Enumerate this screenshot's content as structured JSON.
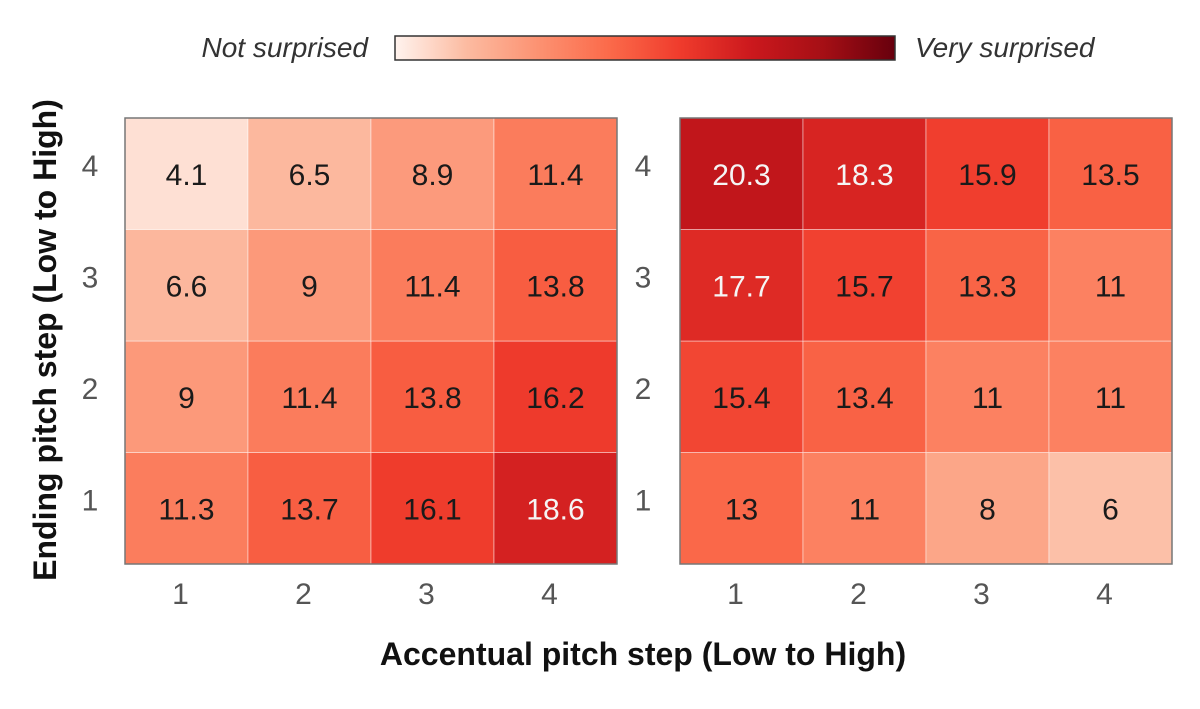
{
  "legend": {
    "low_label": "Not surprised",
    "high_label": "Very surprised",
    "color_low": "#fff3ee",
    "color_high": "#67000d"
  },
  "xlabel": "Accentual pitch step (Low to High)",
  "ylabel": "Ending pitch step (Low to High)",
  "chart_data": [
    {
      "type": "heatmap",
      "x": [
        "1",
        "2",
        "3",
        "4"
      ],
      "y": [
        "1",
        "2",
        "3",
        "4"
      ],
      "z": [
        [
          11.3,
          13.7,
          16.1,
          18.6
        ],
        [
          9,
          11.4,
          13.8,
          16.2
        ],
        [
          6.6,
          9,
          11.4,
          13.8
        ],
        [
          4.1,
          6.5,
          8.9,
          11.4
        ]
      ],
      "labels": [
        [
          "11.3",
          "13.7",
          "16.1",
          "18.6"
        ],
        [
          "9",
          "11.4",
          "13.8",
          "16.2"
        ],
        [
          "6.6",
          "9",
          "11.4",
          "13.8"
        ],
        [
          "4.1",
          "6.5",
          "8.9",
          "11.4"
        ]
      ]
    },
    {
      "type": "heatmap",
      "x": [
        "1",
        "2",
        "3",
        "4"
      ],
      "y": [
        "1",
        "2",
        "3",
        "4"
      ],
      "z": [
        [
          13,
          11,
          8,
          6
        ],
        [
          15.4,
          13.4,
          11,
          11
        ],
        [
          17.7,
          15.7,
          13.3,
          11
        ],
        [
          20.3,
          18.3,
          15.9,
          13.5
        ]
      ],
      "labels": [
        [
          "13",
          "11",
          "8",
          "6"
        ],
        [
          "15.4",
          "13.4",
          "11",
          "11"
        ],
        [
          "17.7",
          "15.7",
          "13.3",
          "11"
        ],
        [
          "20.3",
          "18.3",
          "15.9",
          "13.5"
        ]
      ]
    }
  ],
  "color_scale": {
    "vmin": 3,
    "vmax": 26,
    "stops": [
      "#fff3ee",
      "#fcbba1",
      "#fc9272",
      "#fb6a4a",
      "#ef3b2c",
      "#cb181d",
      "#a50f15",
      "#67000d"
    ]
  }
}
